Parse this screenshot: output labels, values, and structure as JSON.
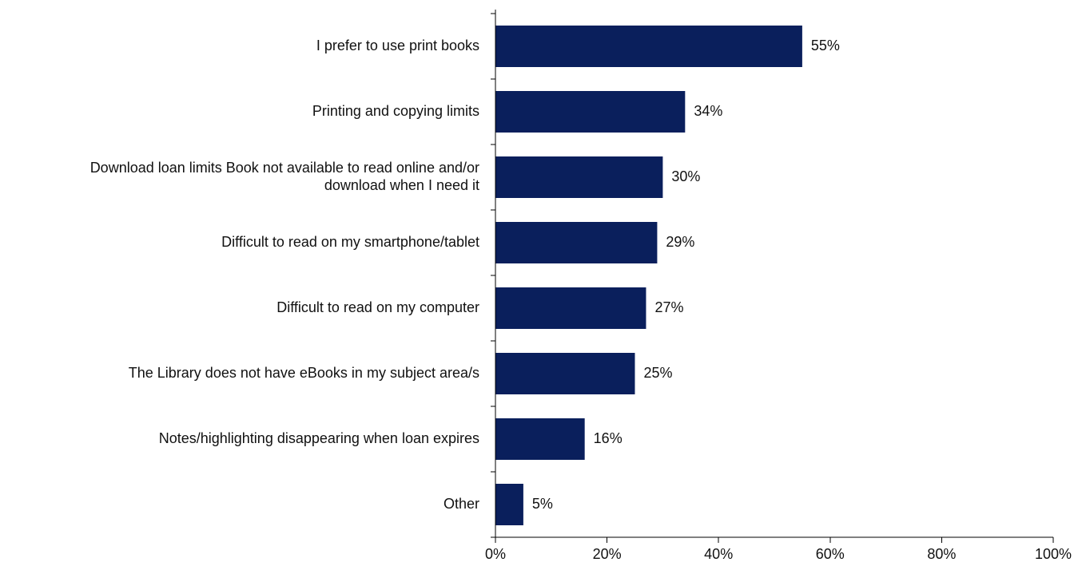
{
  "chart_data": {
    "type": "bar",
    "orientation": "horizontal",
    "categories": [
      "I prefer to use print books",
      "Printing and copying limits",
      "Download loan limits Book not available to read online and/or download when I need it",
      "Difficult to read on my smartphone/tablet",
      "Difficult to read on my computer",
      "The Library does not have eBooks in my subject area/s",
      "Notes/highlighting disappearing when loan expires",
      "Other"
    ],
    "category_lines": [
      [
        "I prefer to use print books"
      ],
      [
        "Printing and copying limits"
      ],
      [
        "Download loan limits Book not available to read online and/or",
        "download when I need it"
      ],
      [
        "Difficult to read on my smartphone/tablet"
      ],
      [
        "Difficult to read on my computer"
      ],
      [
        "The Library does not have eBooks in my subject area/s"
      ],
      [
        "Notes/highlighting disappearing when loan expires"
      ],
      [
        "Other"
      ]
    ],
    "values": [
      55,
      34,
      30,
      29,
      27,
      25,
      16,
      5
    ],
    "value_labels": [
      "55%",
      "34%",
      "30%",
      "29%",
      "27%",
      "25%",
      "16%",
      "5%"
    ],
    "xlim": [
      0,
      100
    ],
    "xticks": [
      0,
      20,
      40,
      60,
      80,
      100
    ],
    "xtick_labels": [
      "0%",
      "20%",
      "40%",
      "60%",
      "80%",
      "100%"
    ],
    "title": "",
    "xlabel": "",
    "ylabel": "",
    "grid": false,
    "legend": "none",
    "colors": {
      "bar": "#0a1f5c",
      "text": "#111111",
      "axis": "#000000"
    }
  }
}
